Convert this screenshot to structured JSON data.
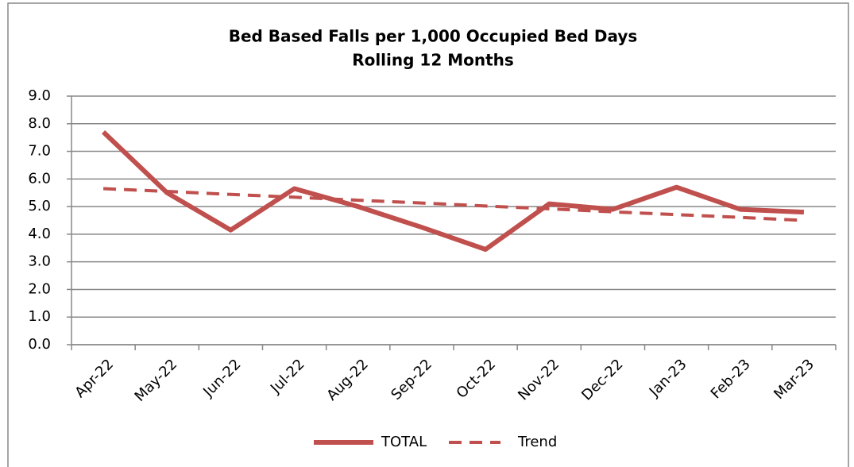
{
  "chart_data": {
    "type": "line",
    "title": "Bed Based Falls per 1,000 Occupied Bed Days",
    "subtitle": "Rolling 12 Months",
    "categories": [
      "Apr-22",
      "May-22",
      "Jun-22",
      "Jul-22",
      "Aug-22",
      "Sep-22",
      "Oct-22",
      "Nov-22",
      "Dec-22",
      "Jan-23",
      "Feb-23",
      "Mar-23"
    ],
    "series": [
      {
        "name": "TOTAL",
        "color": "#c0504d",
        "dashed": false,
        "values": [
          7.7,
          5.5,
          4.15,
          5.65,
          5.0,
          4.25,
          3.45,
          5.1,
          4.9,
          5.7,
          4.9,
          4.8
        ]
      },
      {
        "name": "Trend",
        "color": "#c0504d",
        "dashed": true,
        "values": [
          5.65,
          5.55,
          5.44,
          5.34,
          5.23,
          5.13,
          5.02,
          4.92,
          4.81,
          4.71,
          4.61,
          4.5
        ]
      }
    ],
    "ylim": [
      0,
      9
    ],
    "yticks": [
      {
        "value": 0,
        "label": "0.0"
      },
      {
        "value": 1,
        "label": "1.0"
      },
      {
        "value": 2,
        "label": "2.0"
      },
      {
        "value": 3,
        "label": "3.0"
      },
      {
        "value": 4,
        "label": "4.0"
      },
      {
        "value": 5,
        "label": "5.0"
      },
      {
        "value": 6,
        "label": "6.0"
      },
      {
        "value": 7,
        "label": "7.0"
      },
      {
        "value": 8,
        "label": "8.0"
      },
      {
        "value": 9,
        "label": "9.0"
      }
    ],
    "grid": true,
    "legend": "bottom"
  }
}
